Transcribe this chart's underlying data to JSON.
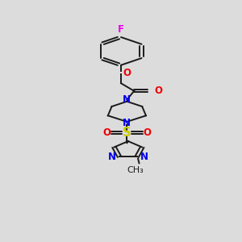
{
  "background_color": "#dcdcdc",
  "bond_color": "#1a1a1a",
  "N_color": "#0000ee",
  "O_color": "#ee0000",
  "F_color": "#ee00ee",
  "S_color": "#cccc00",
  "font_size": 8.5,
  "line_width": 1.4,
  "figsize": [
    3.0,
    3.0
  ],
  "dpi": 100,
  "xlim": [
    0,
    10
  ],
  "ylim": [
    0,
    17
  ]
}
